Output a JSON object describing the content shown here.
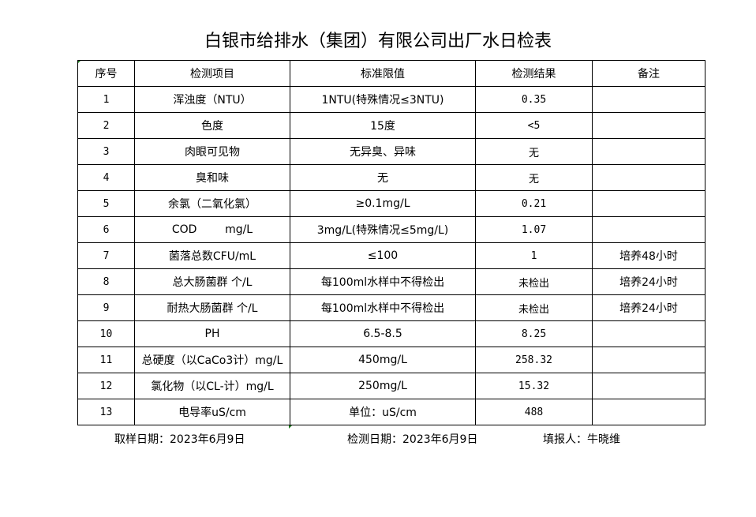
{
  "title": "白银市给排水（集团）有限公司出厂水日检表",
  "headers": [
    "序号",
    "检测项目",
    "标准限值",
    "检测结果",
    "备注"
  ],
  "rows": [
    [
      "1",
      "浑浊度（NTU）",
      "1NTU(特殊情况≤3NTU)",
      "0.35",
      ""
    ],
    [
      "2",
      "色度",
      "15度",
      "<5",
      ""
    ],
    [
      "3",
      "肉眼可见物",
      "无异臭、异味",
      "无",
      ""
    ],
    [
      "4",
      "臭和味",
      "无",
      "无",
      ""
    ],
    [
      "5",
      "余氯（二氧化氯）",
      "≥0.1mg/L",
      "0.21",
      ""
    ],
    [
      "6",
      "COD        mg/L",
      "3mg/L(特殊情况≤5mg/L)",
      "1.07",
      ""
    ],
    [
      "7",
      "菌落总数CFU/mL",
      "≤100",
      "1",
      "培养48小时"
    ],
    [
      "8",
      "总大肠菌群 个/L",
      "每100ml水样中不得检出",
      "未检出",
      "培养24小时"
    ],
    [
      "9",
      "耐热大肠菌群 个/L",
      "每100ml水样中不得检出",
      "未检出",
      "培养24小时"
    ],
    [
      "10",
      "PH",
      "6.5-8.5",
      "8.25",
      ""
    ],
    [
      "11",
      "总硬度（以CaCo3计）mg/L",
      "450mg/L",
      "258.32",
      ""
    ],
    [
      "12",
      "氯化物（以CL-计）mg/L",
      "250mg/L",
      "15.32",
      ""
    ],
    [
      "13",
      "电导率uS/cm",
      "单位：uS/cm",
      "488",
      ""
    ]
  ],
  "footer": {
    "sample_date": "取样日期：2023年6月9日",
    "test_date": "检测日期：2023年6月9日",
    "reporter": "填报人：牛晓维"
  }
}
